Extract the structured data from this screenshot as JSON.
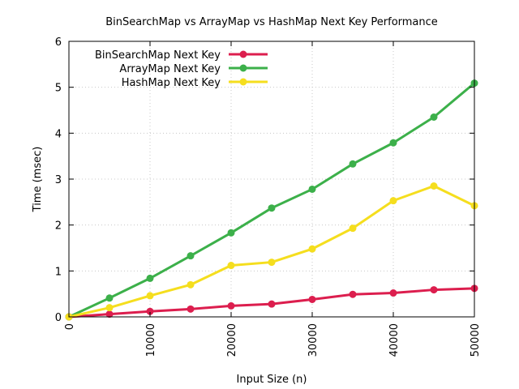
{
  "chart_data": {
    "type": "line",
    "title": "BinSearchMap vs ArrayMap vs HashMap Next Key Performance",
    "xlabel": "Input Size (n)",
    "ylabel": "Time (msec)",
    "xlim": [
      0,
      50000
    ],
    "ylim": [
      0,
      6
    ],
    "x_ticks": [
      0,
      10000,
      20000,
      30000,
      40000,
      50000
    ],
    "y_ticks": [
      0,
      1,
      2,
      3,
      4,
      5,
      6
    ],
    "grid": true,
    "legend_position": "top-left",
    "x": [
      0,
      5000,
      10000,
      15000,
      20000,
      25000,
      30000,
      35000,
      40000,
      45000,
      50000
    ],
    "series": [
      {
        "name": "BinSearchMap Next Key",
        "color": "#dc1e4e",
        "values": [
          0.0,
          0.06,
          0.12,
          0.17,
          0.24,
          0.28,
          0.38,
          0.49,
          0.52,
          0.59,
          0.62
        ]
      },
      {
        "name": "ArrayMap Next Key",
        "color": "#3cb04a",
        "values": [
          0.0,
          0.41,
          0.84,
          1.33,
          1.83,
          2.37,
          2.78,
          3.33,
          3.79,
          4.35,
          5.09
        ]
      },
      {
        "name": "HashMap Next Key",
        "color": "#f5de1e",
        "values": [
          0.0,
          0.2,
          0.46,
          0.7,
          1.12,
          1.19,
          1.48,
          1.93,
          2.53,
          2.85,
          2.42
        ]
      }
    ]
  }
}
